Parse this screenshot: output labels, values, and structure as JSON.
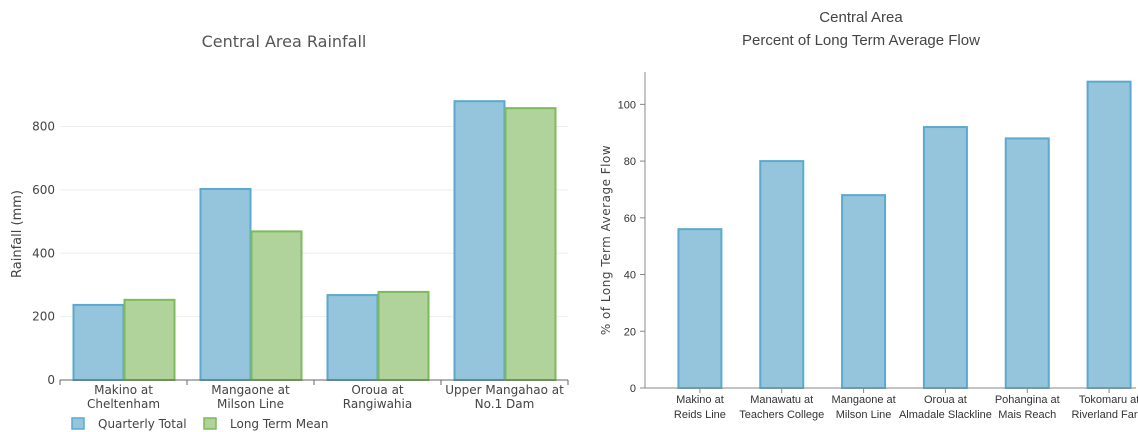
{
  "colors": {
    "blue_fill": "#95c4dd",
    "blue_stroke": "#5ba9cc",
    "green_fill": "#afd39b",
    "green_stroke": "#7cba5b",
    "grid": "#eeeeee",
    "axis": "#666666"
  },
  "chart_data": [
    {
      "type": "bar",
      "title": "Central Area Rainfall",
      "xlabel": "",
      "ylabel": "Rainfall (mm)",
      "categories": [
        [
          "Makino at",
          "Cheltenham"
        ],
        [
          "Mangaone at",
          "Milson Line"
        ],
        [
          "Oroua at",
          "Rangiwahia"
        ],
        [
          "Upper Mangahao at",
          "No.1 Dam"
        ]
      ],
      "series": [
        {
          "name": "Quarterly Total",
          "values": [
            237,
            603,
            268,
            880
          ]
        },
        {
          "name": "Long Term Mean",
          "values": [
            253,
            469,
            278,
            858
          ]
        }
      ],
      "ylim": [
        0,
        950
      ],
      "yticks": [
        "0",
        "200",
        "400",
        "600",
        "800"
      ],
      "grid": true,
      "legend": "bottom-left"
    },
    {
      "type": "bar",
      "title": [
        "Central Area",
        "Percent of Long Term Average Flow"
      ],
      "xlabel": "",
      "ylabel": "% of Long Term Average Flow",
      "categories": [
        [
          "Makino at",
          "Reids Line"
        ],
        [
          "Manawatu at",
          "Teachers College"
        ],
        [
          "Mangaone at",
          "Milson Line"
        ],
        [
          "Oroua at",
          "Almadale Slackline"
        ],
        [
          "Pohangina at",
          "Mais Reach"
        ],
        [
          "Tokomaru at",
          "Riverland Farm"
        ]
      ],
      "series": [
        {
          "values": [
            56,
            80,
            68,
            92,
            88,
            108
          ]
        }
      ],
      "ylim": [
        0,
        110
      ],
      "yticks": [
        "0",
        "20",
        "40",
        "60",
        "80",
        "100"
      ],
      "grid": false,
      "legend": "none"
    }
  ]
}
